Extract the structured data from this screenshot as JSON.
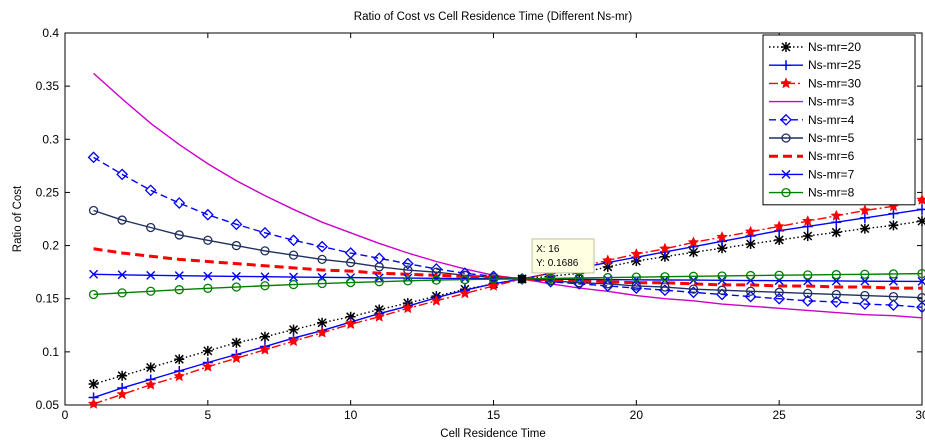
{
  "chart_data": {
    "type": "line",
    "title": "Ratio of Cost vs Cell Residence Time (Different Ns-mr)",
    "xlabel": "Cell Residence Time",
    "ylabel": "Ratio of Cost",
    "xlim": [
      0,
      30
    ],
    "ylim": [
      0.05,
      0.4
    ],
    "x_ticks": [
      0,
      5,
      10,
      15,
      20,
      25,
      30
    ],
    "y_ticks": [
      0.05,
      0.1,
      0.15,
      0.2,
      0.25,
      0.3,
      0.35,
      0.4
    ],
    "grid": false,
    "legend_position": "top-right",
    "x": [
      1,
      2,
      3,
      4,
      5,
      6,
      7,
      8,
      9,
      10,
      11,
      12,
      13,
      14,
      15,
      16,
      17,
      18,
      19,
      20,
      21,
      22,
      23,
      24,
      25,
      26,
      27,
      28,
      29,
      30
    ],
    "series": [
      {
        "name": "Ns-mr=20",
        "color": "#000000",
        "dash": "dotted",
        "marker": "asterisk",
        "values": [
          0.0697,
          0.0775,
          0.0853,
          0.0931,
          0.1009,
          0.1086,
          0.1142,
          0.1209,
          0.1274,
          0.133,
          0.1398,
          0.1459,
          0.1524,
          0.1589,
          0.164,
          0.1686,
          0.1712,
          0.1738,
          0.18,
          0.1855,
          0.1895,
          0.1937,
          0.1975,
          0.2015,
          0.2053,
          0.209,
          0.2125,
          0.216,
          0.219,
          0.223
        ]
      },
      {
        "name": "Ns-mr=25",
        "color": "#0000ff",
        "dash": "solid",
        "marker": "plus",
        "values": [
          0.057,
          0.066,
          0.074,
          0.082,
          0.09,
          0.0975,
          0.105,
          0.113,
          0.12,
          0.128,
          0.136,
          0.143,
          0.151,
          0.158,
          0.164,
          0.1686,
          0.174,
          0.179,
          0.184,
          0.189,
          0.194,
          0.199,
          0.204,
          0.209,
          0.214,
          0.218,
          0.222,
          0.226,
          0.23,
          0.234
        ]
      },
      {
        "name": "Ns-mr=30",
        "color": "#ff0000",
        "dash": "dashdot",
        "marker": "star",
        "values": [
          0.051,
          0.06,
          0.069,
          0.077,
          0.086,
          0.094,
          0.102,
          0.11,
          0.118,
          0.126,
          0.133,
          0.141,
          0.148,
          0.155,
          0.162,
          0.1686,
          0.174,
          0.18,
          0.186,
          0.192,
          0.197,
          0.203,
          0.208,
          0.213,
          0.218,
          0.223,
          0.228,
          0.233,
          0.237,
          0.243
        ]
      },
      {
        "name": "Ns-mr=3",
        "color": "#cc00cc",
        "dash": "solid",
        "marker": "none",
        "values": [
          0.362,
          0.338,
          0.315,
          0.295,
          0.277,
          0.261,
          0.247,
          0.234,
          0.222,
          0.212,
          0.202,
          0.193,
          0.185,
          0.178,
          0.172,
          0.1686,
          0.164,
          0.16,
          0.157,
          0.153,
          0.15,
          0.148,
          0.145,
          0.143,
          0.141,
          0.139,
          0.137,
          0.135,
          0.134,
          0.132
        ]
      },
      {
        "name": "Ns-mr=4",
        "color": "#0000ff",
        "dash": "dashed",
        "marker": "diamond",
        "values": [
          0.283,
          0.267,
          0.252,
          0.24,
          0.229,
          0.22,
          0.212,
          0.205,
          0.199,
          0.193,
          0.188,
          0.183,
          0.178,
          0.174,
          0.171,
          0.1686,
          0.166,
          0.164,
          0.162,
          0.16,
          0.158,
          0.156,
          0.154,
          0.152,
          0.15,
          0.148,
          0.147,
          0.145,
          0.144,
          0.142
        ]
      },
      {
        "name": "Ns-mr=5",
        "color": "#1f2f5f",
        "dash": "solid",
        "marker": "circle",
        "values": [
          0.233,
          0.224,
          0.217,
          0.21,
          0.205,
          0.2,
          0.195,
          0.191,
          0.187,
          0.184,
          0.18,
          0.177,
          0.175,
          0.172,
          0.17,
          0.1686,
          0.167,
          0.165,
          0.164,
          0.162,
          0.161,
          0.159,
          0.158,
          0.157,
          0.156,
          0.155,
          0.154,
          0.153,
          0.152,
          0.151
        ]
      },
      {
        "name": "Ns-mr=6",
        "color": "#ff0000",
        "dash": "heavy-dashed",
        "marker": "none",
        "values": [
          0.197,
          0.193,
          0.19,
          0.187,
          0.185,
          0.183,
          0.181,
          0.179,
          0.177,
          0.176,
          0.174,
          0.173,
          0.172,
          0.171,
          0.17,
          0.1686,
          0.168,
          0.167,
          0.166,
          0.165,
          0.165,
          0.164,
          0.163,
          0.163,
          0.162,
          0.162,
          0.161,
          0.161,
          0.16,
          0.16
        ]
      },
      {
        "name": "Ns-mr=7",
        "color": "#0000ff",
        "dash": "solid",
        "marker": "x",
        "values": [
          0.173,
          0.1725,
          0.172,
          0.1717,
          0.1713,
          0.171,
          0.1707,
          0.1704,
          0.1701,
          0.1699,
          0.1696,
          0.1694,
          0.1692,
          0.169,
          0.1688,
          0.1686,
          0.1684,
          0.1682,
          0.168,
          0.1678,
          0.1676,
          0.1675,
          0.1673,
          0.1671,
          0.167,
          0.1668,
          0.1667,
          0.1665,
          0.1664,
          0.1663
        ]
      },
      {
        "name": "Ns-mr=8",
        "color": "#008000",
        "dash": "solid",
        "marker": "circle",
        "values": [
          0.154,
          0.1555,
          0.157,
          0.1585,
          0.1598,
          0.161,
          0.1622,
          0.1633,
          0.1643,
          0.1652,
          0.166,
          0.1668,
          0.1675,
          0.168,
          0.1684,
          0.1686,
          0.1691,
          0.1695,
          0.1699,
          0.1703,
          0.1707,
          0.1711,
          0.1714,
          0.1718,
          0.1721,
          0.1724,
          0.1727,
          0.173,
          0.1733,
          0.1736
        ]
      }
    ],
    "datatip": {
      "x_label": "X: 16",
      "y_label": "Y: 0.1686",
      "x": 16,
      "y": 0.1686
    }
  }
}
